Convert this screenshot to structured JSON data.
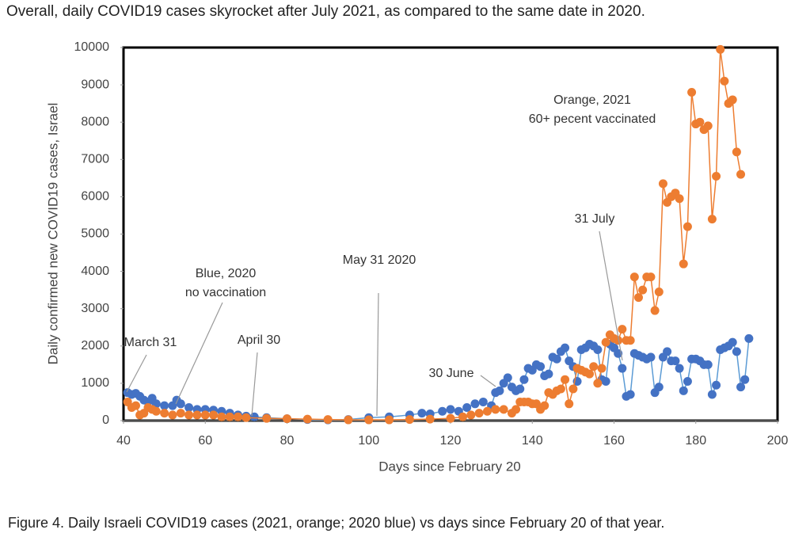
{
  "chart_data": {
    "type": "line",
    "title": "Overall, daily COVID19 cases skyrocket after July 2021, as compared to the same date in 2020.",
    "caption": "Figure 4. Daily Israeli COVID19 cases (2021, orange; 2020 blue) vs days since February 20 of that year.",
    "x_label": "Days since February 20",
    "y_label": "Daily confirmed new COVID19 cases, Israel",
    "xlim": [
      40,
      200
    ],
    "xticks": [
      40,
      60,
      80,
      100,
      120,
      140,
      160,
      180,
      200
    ],
    "ylim": [
      0,
      10000
    ],
    "yticks": [
      0,
      1000,
      2000,
      3000,
      4000,
      5000,
      6000,
      7000,
      8000,
      9000,
      10000
    ],
    "grid": false,
    "annotations": [
      {
        "lines": [
          "March 31"
        ]
      },
      {
        "lines": [
          "Blue, 2020",
          "no vaccination"
        ]
      },
      {
        "lines": [
          "April 30"
        ]
      },
      {
        "lines": [
          "May 31 2020"
        ]
      },
      {
        "lines": [
          "30 June"
        ]
      },
      {
        "lines": [
          "31 July"
        ]
      },
      {
        "lines": [
          "Orange, 2021",
          "60+ pecent vaccinated"
        ]
      }
    ],
    "series": [
      {
        "color": "#4472c4",
        "line_color": "#5b9bd5",
        "x": [
          41,
          42,
          43,
          44,
          45,
          46,
          47,
          48,
          50,
          52,
          53,
          54,
          56,
          58,
          60,
          62,
          64,
          66,
          68,
          70,
          72,
          75,
          80,
          85,
          90,
          95,
          100,
          105,
          110,
          113,
          115,
          118,
          120,
          122,
          124,
          126,
          128,
          130,
          131,
          132,
          133,
          134,
          135,
          136,
          137,
          138,
          139,
          140,
          141,
          142,
          143,
          144,
          145,
          146,
          147,
          148,
          149,
          150,
          151,
          152,
          153,
          154,
          155,
          156,
          157,
          158,
          159,
          160,
          161,
          162,
          163,
          164,
          165,
          166,
          167,
          168,
          169,
          170,
          171,
          172,
          173,
          174,
          175,
          176,
          177,
          178,
          179,
          180,
          181,
          182,
          183,
          184,
          185,
          186,
          187,
          188,
          189,
          190,
          191,
          192,
          193
        ],
        "values": [
          750,
          700,
          730,
          650,
          550,
          500,
          600,
          450,
          400,
          400,
          550,
          450,
          350,
          300,
          300,
          280,
          250,
          200,
          150,
          120,
          100,
          80,
          50,
          30,
          20,
          30,
          80,
          100,
          150,
          200,
          180,
          250,
          300,
          250,
          350,
          450,
          500,
          400,
          750,
          800,
          1000,
          1150,
          900,
          800,
          850,
          1100,
          1400,
          1350,
          1500,
          1450,
          1200,
          1250,
          1700,
          1650,
          1850,
          1950,
          1600,
          1450,
          1050,
          1900,
          1950,
          2050,
          2000,
          1900,
          1100,
          1050,
          2050,
          1950,
          1800,
          1400,
          650,
          700,
          1800,
          1750,
          1700,
          1650,
          1700,
          750,
          900,
          1700,
          1850,
          1600,
          1600,
          1400,
          800,
          1050,
          1650,
          1650,
          1600,
          1500,
          1500,
          700,
          950,
          1900,
          1950,
          2000,
          2100,
          1850,
          900,
          1100,
          2200
        ]
      },
      {
        "color": "#ed7d31",
        "line_color": "#ed7d31",
        "x": [
          41,
          42,
          43,
          44,
          45,
          46,
          47,
          48,
          50,
          52,
          54,
          56,
          58,
          60,
          62,
          64,
          66,
          68,
          70,
          75,
          80,
          85,
          90,
          95,
          100,
          105,
          110,
          115,
          120,
          123,
          125,
          127,
          129,
          131,
          133,
          135,
          136,
          137,
          138,
          139,
          140,
          141,
          142,
          143,
          144,
          145,
          146,
          147,
          148,
          149,
          150,
          151,
          152,
          153,
          154,
          155,
          156,
          157,
          158,
          159,
          160,
          161,
          162,
          163,
          164,
          165,
          166,
          167,
          168,
          169,
          170,
          171,
          172,
          173,
          174,
          175,
          176,
          177,
          178,
          179,
          180,
          181,
          182,
          183,
          184,
          185,
          186,
          187,
          188,
          189,
          190,
          191
        ],
        "values": [
          500,
          350,
          400,
          150,
          200,
          350,
          300,
          250,
          200,
          150,
          200,
          150,
          150,
          150,
          150,
          100,
          100,
          100,
          80,
          60,
          50,
          40,
          30,
          20,
          20,
          20,
          30,
          40,
          60,
          100,
          150,
          200,
          250,
          300,
          300,
          200,
          300,
          500,
          500,
          500,
          450,
          450,
          300,
          400,
          750,
          700,
          800,
          850,
          1100,
          450,
          850,
          1400,
          1350,
          1300,
          1250,
          1450,
          1000,
          1400,
          2100,
          2300,
          2200,
          2150,
          2450,
          2150,
          2150,
          3850,
          3300,
          3500,
          3850,
          3850,
          2950,
          3450,
          6350,
          5850,
          6000,
          6100,
          5950,
          4200,
          5200,
          8800,
          7950,
          8000,
          7800,
          7900,
          5400,
          6550,
          9950,
          9100,
          8500,
          8600,
          7200,
          6600
        ]
      }
    ]
  }
}
